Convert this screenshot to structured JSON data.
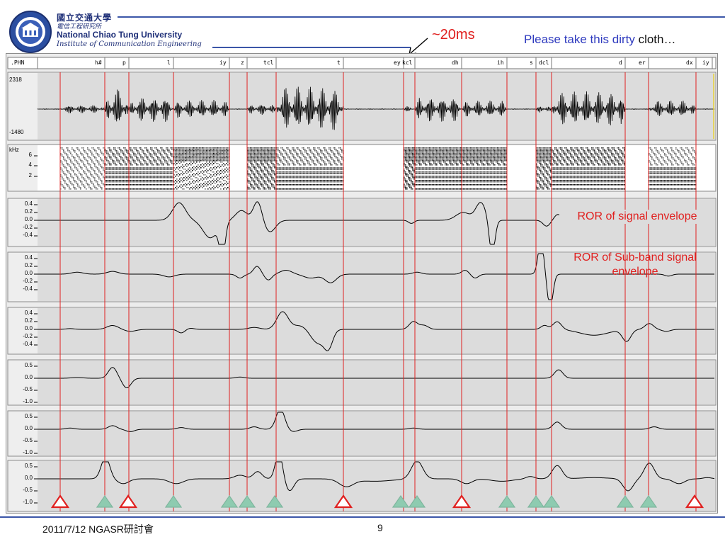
{
  "header": {
    "university_zh": "國立交通大學",
    "institute_zh": "電信工程研究所",
    "university_en": "National Chiao Tung University",
    "institute_en": "Institute of Communication Engineering"
  },
  "annotation_20ms": "~20ms",
  "sentence": {
    "part1": "Please take this dirty ",
    "part2": "cloth…"
  },
  "wave_window": {
    "tier_label": ".PHN",
    "phones": [
      "h#",
      "p",
      "l",
      "iy",
      "z",
      "tcl",
      "t",
      "ey",
      "kcl",
      "dh",
      "ih",
      "s",
      "dcl",
      "d",
      "er",
      "dx",
      "iy"
    ],
    "waveform_axis": {
      "max": "2318",
      "min": "-1480"
    },
    "spectrogram_axis": {
      "unit": "kHz",
      "ticks": [
        "6",
        "4",
        "2"
      ]
    },
    "panels": [
      {
        "ticks": [
          "0.4",
          "0.2",
          "0.0",
          "-0.2",
          "-0.4"
        ]
      },
      {
        "ticks": [
          "0.4",
          "0.2",
          "0.0",
          "-0.2",
          "-0.4"
        ]
      },
      {
        "ticks": [
          "0.4",
          "0.2",
          "0.0",
          "-0.2",
          "-0.4"
        ]
      },
      {
        "ticks": [
          "0.5",
          "0.0",
          "-0.5",
          "-1.0"
        ]
      },
      {
        "ticks": [
          "0.5",
          "0.0",
          "-0.5",
          "-1.0"
        ]
      },
      {
        "ticks": [
          "0.5",
          "0.0",
          "-0.5",
          "-1.0"
        ]
      }
    ],
    "notes": {
      "signal_envelope": "ROR of signal envelope",
      "subband_envelope": "ROR of Sub-band signal envelope"
    },
    "marker_colors": {
      "boundary": "#e0201f",
      "detected_ok": "#8ecbb0",
      "missed": "#e0201f"
    }
  },
  "footer": {
    "left": "2011/7/12 NGASR研討會",
    "page": "9"
  }
}
